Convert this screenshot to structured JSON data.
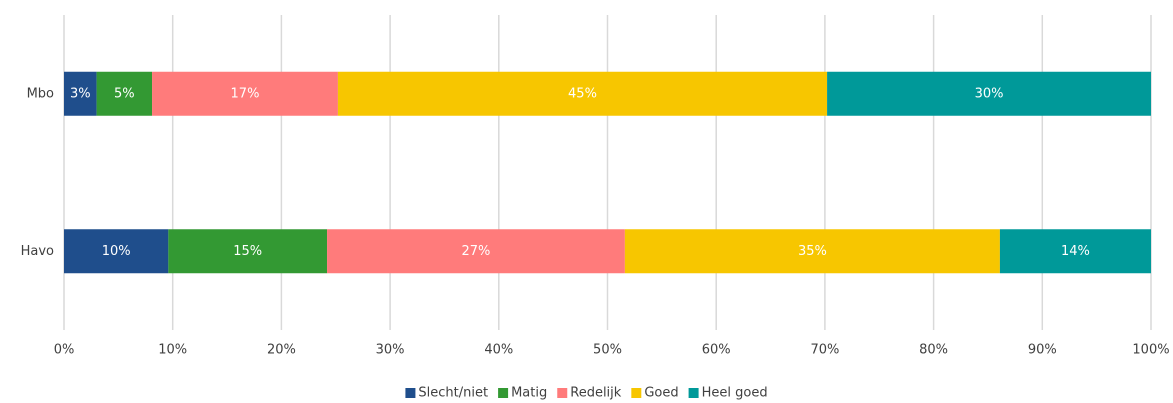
{
  "chart_data": {
    "type": "stacked_bar_horizontal",
    "categories": [
      "Mbo",
      "Havo"
    ],
    "series": [
      {
        "name": "Slecht/niet",
        "color": "#1f4e8c",
        "values": [
          3.0,
          9.6
        ],
        "value_labels": [
          "3%",
          "10%"
        ]
      },
      {
        "name": "Matig",
        "color": "#339933",
        "values": [
          5.1,
          14.6
        ],
        "value_labels": [
          "5%",
          "15%"
        ]
      },
      {
        "name": "Redelijk",
        "color": "#ff7b7b",
        "values": [
          17.1,
          27.4
        ],
        "value_labels": [
          "17%",
          "27%"
        ]
      },
      {
        "name": "Goed",
        "color": "#f7c600",
        "values": [
          45.0,
          34.5
        ],
        "value_labels": [
          "45%",
          "35%"
        ]
      },
      {
        "name": "Heel goed",
        "color": "#009999",
        "values": [
          29.8,
          13.9
        ],
        "value_labels": [
          "30%",
          "14%"
        ]
      }
    ],
    "xlim": [
      0,
      100
    ],
    "xticks": [
      {
        "value": 0,
        "label": "0%"
      },
      {
        "value": 10,
        "label": "10%"
      },
      {
        "value": 20,
        "label": "20%"
      },
      {
        "value": 30,
        "label": "30%"
      },
      {
        "value": 40,
        "label": "40%"
      },
      {
        "value": 50,
        "label": "50%"
      },
      {
        "value": 60,
        "label": "60%"
      },
      {
        "value": 70,
        "label": "70%"
      },
      {
        "value": 80,
        "label": "80%"
      },
      {
        "value": 90,
        "label": "90%"
      },
      {
        "value": 100,
        "label": "100%"
      }
    ],
    "grid": true,
    "legend": "bottom"
  }
}
